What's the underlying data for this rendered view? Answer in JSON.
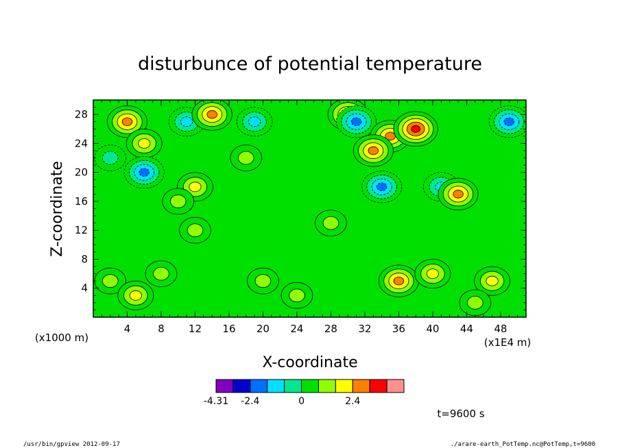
{
  "chart_data": {
    "type": "heatmap",
    "title": "disturbunce of potential temperature",
    "xlabel": "X-coordinate",
    "ylabel": "Z-coordinate",
    "x_unit": "(x1E4 m)",
    "y_unit": "(x1000 m)",
    "xlim": [
      0,
      51
    ],
    "ylim": [
      0,
      30
    ],
    "x_ticks": [
      "4",
      "8",
      "12",
      "16",
      "20",
      "24",
      "28",
      "32",
      "36",
      "40",
      "44",
      "48"
    ],
    "y_ticks": [
      "4",
      "8",
      "12",
      "16",
      "20",
      "24",
      "28"
    ],
    "x_tick_values": [
      4,
      8,
      12,
      16,
      20,
      24,
      28,
      32,
      36,
      40,
      44,
      48
    ],
    "y_tick_values": [
      4,
      8,
      12,
      16,
      20,
      24,
      28
    ],
    "colorbar": {
      "colors": [
        "#8000c0",
        "#0000d0",
        "#0070ff",
        "#00e0ff",
        "#00e890",
        "#00e000",
        "#90ff00",
        "#ffff00",
        "#ff8000",
        "#ff0000",
        "#ff9090"
      ],
      "labels": [
        "-4.31",
        "-2.4",
        "0",
        "2.4"
      ],
      "label_positions": [
        0,
        2,
        5,
        8
      ]
    },
    "features": [
      {
        "x": 4,
        "z": 27,
        "value": 2.0
      },
      {
        "x": 6,
        "z": 24,
        "value": 1.5
      },
      {
        "x": 2,
        "z": 22,
        "value": -1.2
      },
      {
        "x": 6,
        "z": 20,
        "value": -2.6
      },
      {
        "x": 12,
        "z": 18,
        "value": 1.8
      },
      {
        "x": 11,
        "z": 27,
        "value": -1.5
      },
      {
        "x": 14,
        "z": 28,
        "value": 2.4
      },
      {
        "x": 19,
        "z": 27,
        "value": -1.4
      },
      {
        "x": 18,
        "z": 22,
        "value": 1.2
      },
      {
        "x": 30,
        "z": 28,
        "value": 2.8
      },
      {
        "x": 31,
        "z": 27,
        "value": -2.6
      },
      {
        "x": 35,
        "z": 25,
        "value": 2.2
      },
      {
        "x": 33,
        "z": 23,
        "value": 2.6
      },
      {
        "x": 38,
        "z": 26,
        "value": 3.0
      },
      {
        "x": 34,
        "z": 18,
        "value": -2.8
      },
      {
        "x": 41,
        "z": 18,
        "value": -1.6
      },
      {
        "x": 43,
        "z": 17,
        "value": 2.2
      },
      {
        "x": 49,
        "z": 27,
        "value": -2.8
      },
      {
        "x": 36,
        "z": 5,
        "value": 2.2
      },
      {
        "x": 40,
        "z": 6,
        "value": 1.4
      },
      {
        "x": 47,
        "z": 5,
        "value": 1.4
      },
      {
        "x": 20,
        "z": 5,
        "value": 1.0
      },
      {
        "x": 8,
        "z": 6,
        "value": 0.8
      },
      {
        "x": 2,
        "z": 5,
        "value": 1.2
      },
      {
        "x": 12,
        "z": 12,
        "value": 0.6
      },
      {
        "x": 10,
        "z": 16,
        "value": 1.0
      },
      {
        "x": 28,
        "z": 13,
        "value": 0.6
      },
      {
        "x": 5,
        "z": 3,
        "value": 1.6
      },
      {
        "x": 24,
        "z": 3,
        "value": 0.8
      },
      {
        "x": 45,
        "z": 2,
        "value": 0.6
      }
    ]
  },
  "annotations": {
    "time": "t=9600 s",
    "footer_left": "/usr/bin/gpview   2012-09-17",
    "footer_right": "./arare-earth_PotTemp.nc@PotTemp,t=9600"
  }
}
